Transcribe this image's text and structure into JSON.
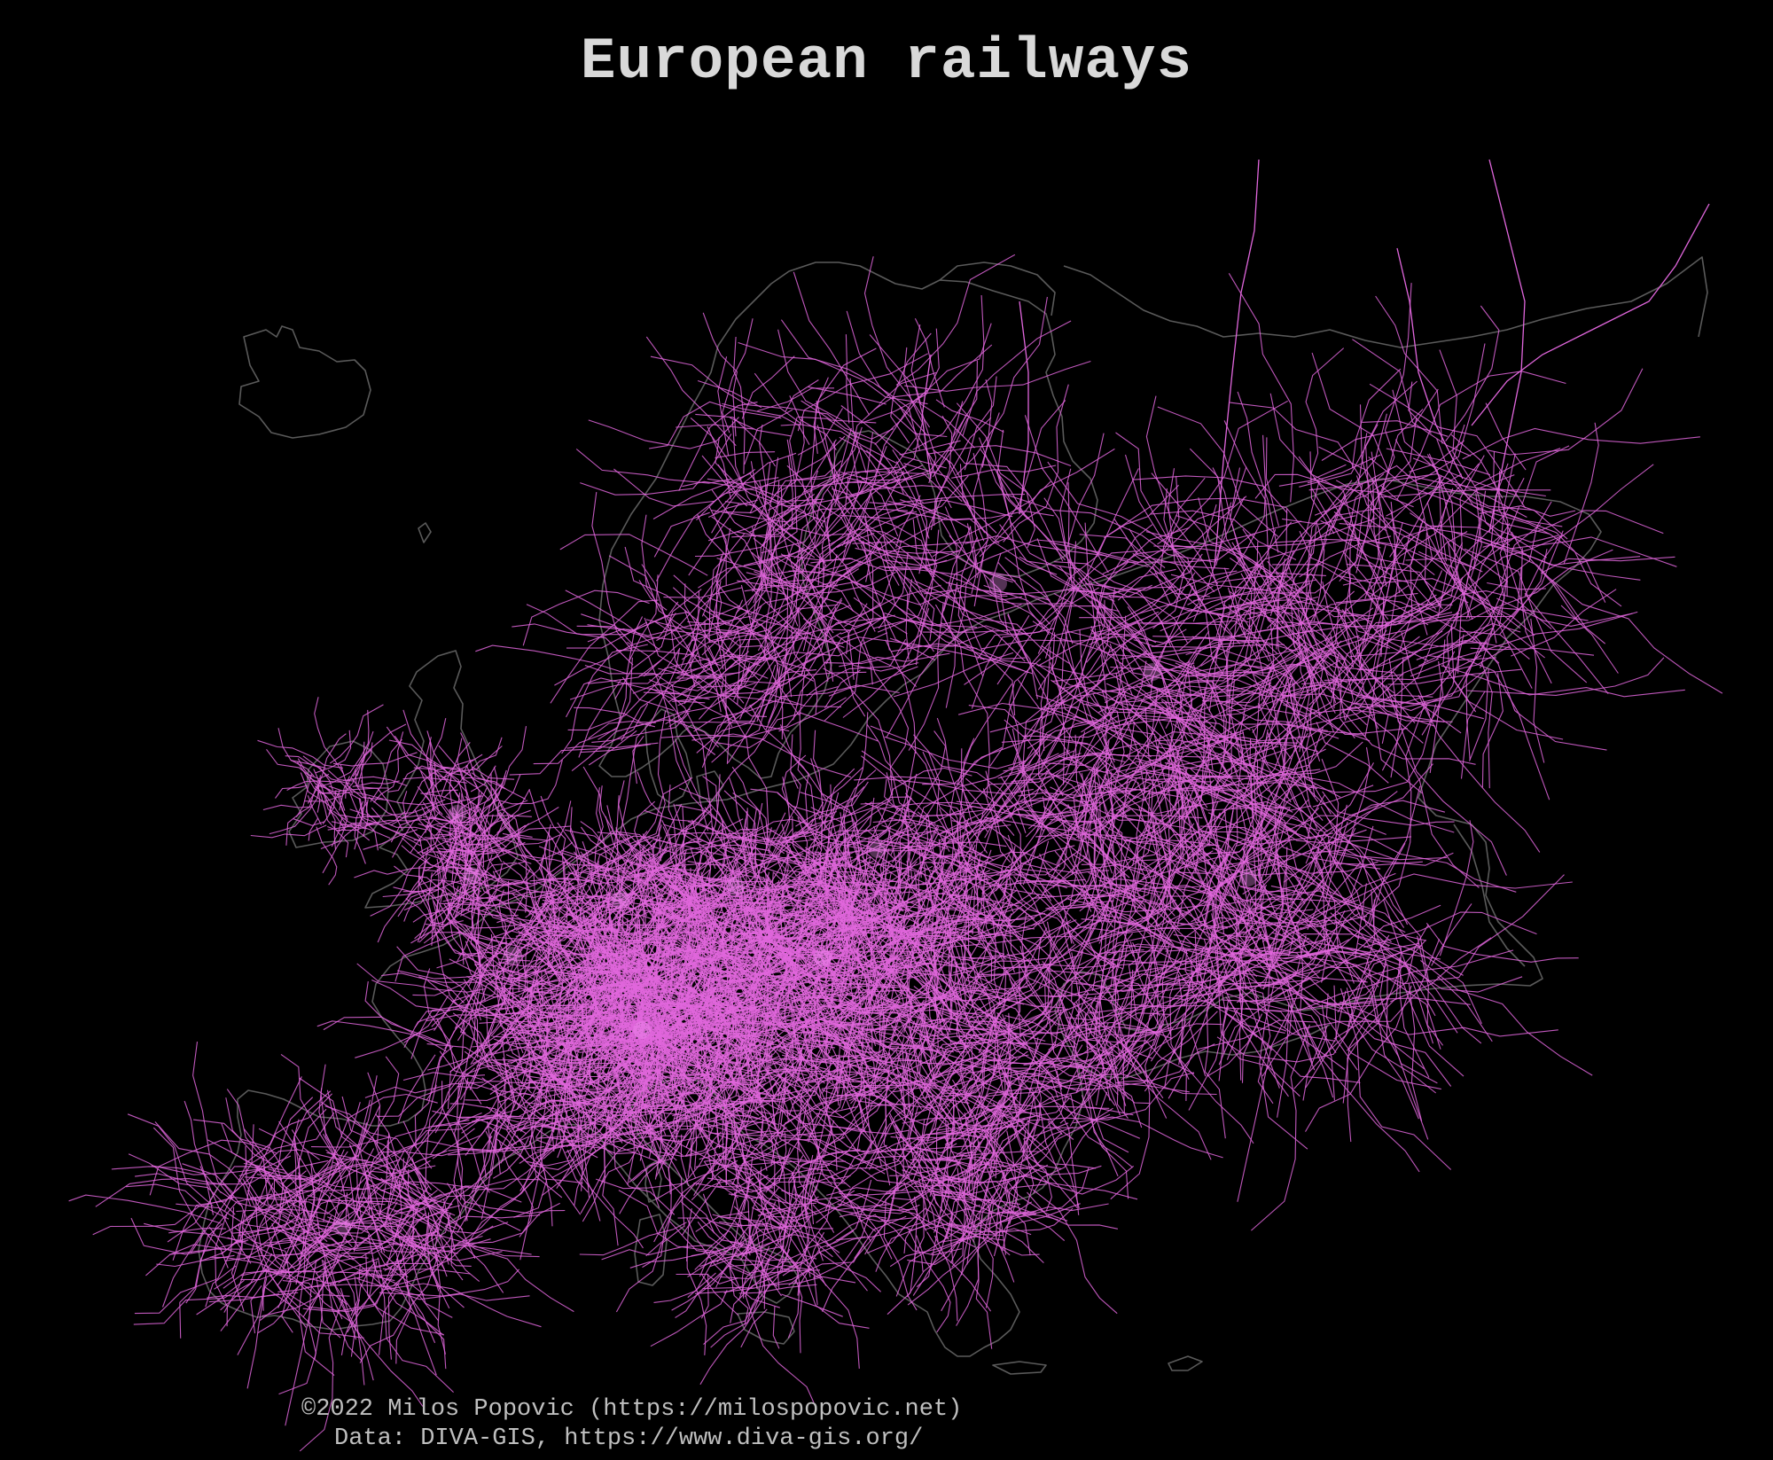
{
  "title": "European railways",
  "credits": {
    "line1": "©2022 Milos Popovic (https://milospopovic.net)",
    "line2": "Data: DIVA-GIS, https://www.diva-gis.org/"
  },
  "style": {
    "background": "#000000",
    "rail_color": "#e066dc",
    "hub_color": "#f28ff0",
    "coast_color": "#5a5a5a",
    "title_color": "#d9d9d9",
    "credit_color": "#bfbfbf"
  }
}
